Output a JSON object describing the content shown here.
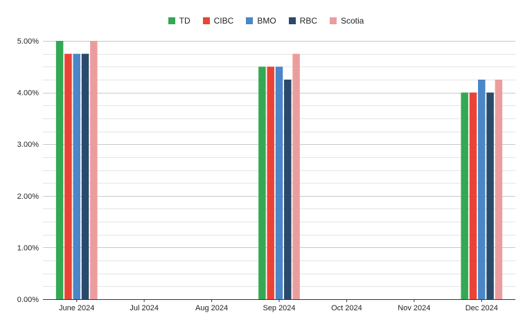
{
  "chart_data": {
    "type": "bar",
    "categories": [
      "June 2024",
      "Jul 2024",
      "Aug 2024",
      "Sep 2024",
      "Oct 2024",
      "Nov 2024",
      "Dec 2024"
    ],
    "series": [
      {
        "name": "TD",
        "color": "#34a853",
        "values": [
          5.0,
          null,
          null,
          4.5,
          null,
          null,
          4.0
        ]
      },
      {
        "name": "CIBC",
        "color": "#ea4335",
        "values": [
          4.75,
          null,
          null,
          4.5,
          null,
          null,
          4.0
        ]
      },
      {
        "name": "BMO",
        "color": "#4a86c8",
        "values": [
          4.75,
          null,
          null,
          4.5,
          null,
          null,
          4.25
        ]
      },
      {
        "name": "RBC",
        "color": "#2a4a6b",
        "values": [
          4.75,
          null,
          null,
          4.25,
          null,
          null,
          4.0
        ]
      },
      {
        "name": "Scotia",
        "color": "#eb9d9d",
        "values": [
          5.0,
          null,
          null,
          4.75,
          null,
          null,
          4.25
        ]
      }
    ],
    "yticks": [
      "0.00%",
      "1.00%",
      "2.00%",
      "3.00%",
      "4.00%",
      "5.00%"
    ],
    "ylim": [
      0,
      5.0
    ],
    "minor_grid_step": 0.25,
    "grid": true,
    "legend_position": "top-center",
    "title": "",
    "xlabel": "",
    "ylabel": ""
  }
}
